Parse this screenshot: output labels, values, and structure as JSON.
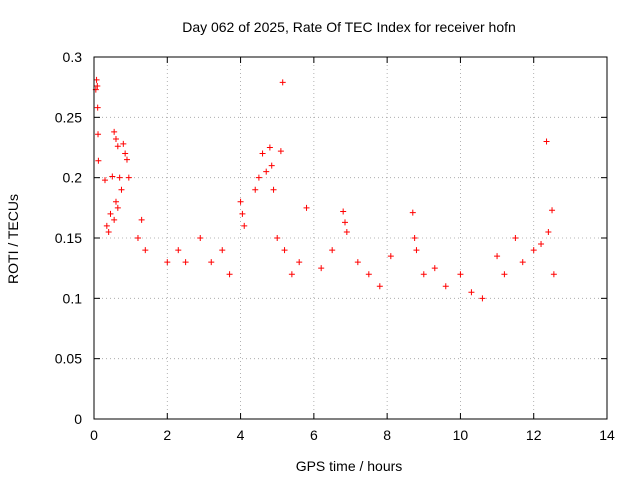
{
  "chart_data": {
    "type": "scatter",
    "title": "Day 062 of 2025, Rate Of TEC Index for receiver hofn",
    "xlabel": "GPS time / hours",
    "ylabel": "ROTI / TECUs",
    "xlim": [
      0,
      14
    ],
    "ylim": [
      0,
      0.3
    ],
    "x_ticks": [
      0,
      2,
      4,
      6,
      8,
      10,
      12,
      14
    ],
    "x_tick_labels": [
      "0",
      "2",
      "4",
      "6",
      "8",
      "10",
      "12",
      "14"
    ],
    "y_ticks": [
      0,
      0.05,
      0.1,
      0.15,
      0.2,
      0.25,
      0.3
    ],
    "y_tick_labels": [
      "0",
      "0.05",
      "0.1",
      "0.15",
      "0.2",
      "0.25",
      "0.3"
    ],
    "grid": true,
    "marker": "plus",
    "series": [
      {
        "name": "ROTI",
        "color": "#ff0000",
        "points": [
          [
            0.05,
            0.273
          ],
          [
            0.07,
            0.281
          ],
          [
            0.09,
            0.276
          ],
          [
            0.1,
            0.258
          ],
          [
            0.11,
            0.236
          ],
          [
            0.12,
            0.214
          ],
          [
            0.3,
            0.198
          ],
          [
            0.5,
            0.201
          ],
          [
            0.55,
            0.238
          ],
          [
            0.6,
            0.232
          ],
          [
            0.65,
            0.226
          ],
          [
            0.7,
            0.2
          ],
          [
            0.75,
            0.19
          ],
          [
            0.8,
            0.228
          ],
          [
            0.85,
            0.22
          ],
          [
            0.9,
            0.215
          ],
          [
            0.95,
            0.2
          ],
          [
            0.6,
            0.18
          ],
          [
            0.65,
            0.175
          ],
          [
            0.55,
            0.165
          ],
          [
            0.45,
            0.17
          ],
          [
            0.4,
            0.155
          ],
          [
            0.35,
            0.16
          ],
          [
            1.3,
            0.165
          ],
          [
            1.4,
            0.14
          ],
          [
            1.2,
            0.15
          ],
          [
            2.0,
            0.13
          ],
          [
            2.3,
            0.14
          ],
          [
            2.5,
            0.13
          ],
          [
            2.9,
            0.15
          ],
          [
            3.2,
            0.13
          ],
          [
            3.5,
            0.14
          ],
          [
            3.7,
            0.12
          ],
          [
            4.0,
            0.18
          ],
          [
            4.05,
            0.17
          ],
          [
            4.1,
            0.16
          ],
          [
            4.4,
            0.19
          ],
          [
            4.5,
            0.2
          ],
          [
            4.6,
            0.22
          ],
          [
            4.7,
            0.205
          ],
          [
            4.8,
            0.225
          ],
          [
            4.85,
            0.21
          ],
          [
            4.9,
            0.19
          ],
          [
            5.15,
            0.279
          ],
          [
            5.1,
            0.222
          ],
          [
            5.0,
            0.15
          ],
          [
            5.2,
            0.14
          ],
          [
            5.4,
            0.12
          ],
          [
            5.6,
            0.13
          ],
          [
            5.8,
            0.175
          ],
          [
            6.2,
            0.125
          ],
          [
            6.5,
            0.14
          ],
          [
            6.8,
            0.172
          ],
          [
            6.85,
            0.163
          ],
          [
            6.9,
            0.155
          ],
          [
            7.2,
            0.13
          ],
          [
            7.5,
            0.12
          ],
          [
            7.8,
            0.11
          ],
          [
            8.1,
            0.135
          ],
          [
            8.7,
            0.171
          ],
          [
            8.75,
            0.15
          ],
          [
            8.8,
            0.14
          ],
          [
            9.0,
            0.12
          ],
          [
            9.3,
            0.125
          ],
          [
            9.6,
            0.11
          ],
          [
            10.0,
            0.12
          ],
          [
            10.3,
            0.105
          ],
          [
            10.6,
            0.1
          ],
          [
            11.0,
            0.135
          ],
          [
            11.2,
            0.12
          ],
          [
            11.5,
            0.15
          ],
          [
            11.7,
            0.13
          ],
          [
            12.0,
            0.14
          ],
          [
            12.2,
            0.145
          ],
          [
            12.35,
            0.23
          ],
          [
            12.4,
            0.155
          ],
          [
            12.5,
            0.173
          ],
          [
            12.55,
            0.12
          ]
        ]
      }
    ]
  }
}
